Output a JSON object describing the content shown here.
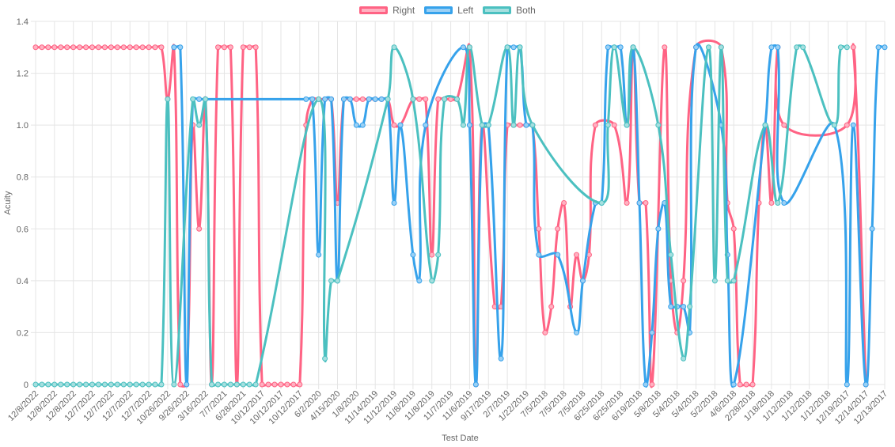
{
  "chart_data": {
    "type": "line",
    "title": "",
    "xlabel": "Test Date",
    "ylabel": "Acuity",
    "ylim": [
      0,
      1.4
    ],
    "y_ticks": [
      "0",
      "0.2",
      "0.4",
      "0.6",
      "0.8",
      "1.0",
      "1.2",
      "1.4"
    ],
    "grid": true,
    "legend_position": "top",
    "x_tick_every": 3,
    "x_tick_labels": [
      "12/8/2022",
      "12/8/2022",
      "12/8/2022",
      "12/7/2022",
      "12/7/2022",
      "12/7/2022",
      "12/7/2022",
      "10/26/2022",
      "9/26/2022",
      "3/16/2022",
      "7/7/2021",
      "6/28/2021",
      "10/12/2017",
      "10/12/2017",
      "10/12/2017",
      "6/2/2020",
      "4/15/2020",
      "1/8/2020",
      "11/14/2019",
      "11/12/2019",
      "11/8/2019",
      "11/8/2019",
      "11/7/2019",
      "11/6/2019",
      "9/17/2019",
      "2/7/2019",
      "1/22/2019",
      "7/5/2018",
      "7/5/2018",
      "7/5/2018",
      "6/25/2018",
      "6/25/2018",
      "6/19/2018",
      "5/8/2018",
      "5/4/2018",
      "5/4/2018",
      "5/2/2018",
      "4/6/2018",
      "2/28/2018",
      "1/18/2018",
      "1/12/2018",
      "1/12/2018",
      "1/12/2018",
      "12/19/2017",
      "12/14/2017",
      "12/13/2017"
    ],
    "point_count": 136,
    "series": [
      {
        "name": "Right",
        "color": "#ff6384",
        "fill": "#ffb1c1",
        "values": {
          "0": 1.3,
          "1": 1.3,
          "2": 1.3,
          "3": 1.3,
          "4": 1.3,
          "5": 1.3,
          "6": 1.3,
          "7": 1.3,
          "8": 1.3,
          "9": 1.3,
          "10": 1.3,
          "11": 1.3,
          "12": 1.3,
          "13": 1.3,
          "14": 1.3,
          "15": 1.3,
          "16": 1.3,
          "17": 1.3,
          "18": 1.3,
          "19": 1.3,
          "20": 1.3,
          "21": 1.1,
          "22": 1.3,
          "23": 0,
          "24": 0,
          "25": 1.0,
          "26": 0.6,
          "27": 1.1,
          "28": 0,
          "29": 1.3,
          "30": 1.3,
          "31": 1.3,
          "32": 0,
          "33": 1.3,
          "34": 1.3,
          "35": 1.3,
          "36": 0,
          "37": 0,
          "38": 0,
          "39": 0,
          "40": 0,
          "41": 0,
          "42": 0,
          "43": 1.0,
          "44": 1.1,
          "45": 1.1,
          "46": 1.1,
          "47": 1.1,
          "48": 0.7,
          "49": 1.1,
          "50": 1.1,
          "51": 1.1,
          "52": 1.1,
          "53": 1.1,
          "54": 1.1,
          "55": 1.1,
          "56": 1.1,
          "57": 1.0,
          "58": 1.0,
          "60": 1.1,
          "61": 1.1,
          "62": 1.1,
          "63": 0.5,
          "64": 1.1,
          "65": 1.1,
          "66": 1.1,
          "67": 1.1,
          "69": 1.3,
          "70": 0,
          "71": 1.0,
          "73": 0.3,
          "74": 0.3,
          "75": 1.0,
          "76": 1.0,
          "77": 1.0,
          "78": 1.0,
          "79": 1.0,
          "80": 0.6,
          "81": 0.2,
          "82": 0.3,
          "83": 0.6,
          "84": 0.7,
          "85": 0.3,
          "86": 0.5,
          "87": 0.4,
          "88": 0.5,
          "89": 1.0,
          "92": 1.0,
          "94": 0.7,
          "95": 1.3,
          "96": 0.7,
          "97": 0.7,
          "98": 0,
          "100": 1.3,
          "101": 0.4,
          "102": 0.2,
          "103": 0.4,
          "105": 1.3,
          "109": 1.3,
          "110": 0.7,
          "111": 0.6,
          "112": 0,
          "113": 0,
          "114": 0,
          "115": 0.7,
          "116": 1.0,
          "117": 0.7,
          "118": 1.3,
          "119": 1.0,
          "129": 1.0,
          "130": 1.3,
          "132": 0
        }
      },
      {
        "name": "Left",
        "color": "#36a2eb",
        "fill": "#9ad0f5",
        "values": {
          "22": 1.3,
          "23": 1.3,
          "24": 0,
          "25": 1.1,
          "26": 1.1,
          "27": 1.1,
          "43": 1.1,
          "44": 1.1,
          "45": 0.5,
          "46": 1.1,
          "47": 1.1,
          "48": 0.4,
          "49": 1.1,
          "50": 1.1,
          "51": 1.0,
          "52": 1.0,
          "53": 1.1,
          "54": 1.1,
          "55": 1.1,
          "56": 1.1,
          "57": 0.7,
          "58": 1.0,
          "60": 0.5,
          "61": 0.4,
          "62": 1.0,
          "68": 1.3,
          "69": 1.0,
          "70": 0,
          "71": 1.0,
          "72": 1.0,
          "74": 0.1,
          "75": 1.3,
          "76": 1.3,
          "77": 1.3,
          "78": 1.0,
          "79": 1.0,
          "80": 0.5,
          "83": 0.5,
          "86": 0.2,
          "87": 0.4,
          "89": 0.7,
          "90": 0.7,
          "91": 1.3,
          "92": 1.3,
          "93": 1.3,
          "94": 1.0,
          "95": 1.3,
          "96": 0.7,
          "97": 0,
          "98": 0.2,
          "99": 0.6,
          "100": 0.7,
          "101": 0.3,
          "102": 0.3,
          "103": 0.3,
          "104": 0.2,
          "105": 1.3,
          "109": 1.0,
          "110": 0.5,
          "111": 0,
          "116": 1.0,
          "117": 1.3,
          "118": 1.3,
          "119": 0.7,
          "127": 1.0,
          "129": 0,
          "130": 1.0,
          "132": 0,
          "133": 0.6,
          "134": 1.3,
          "135": 1.3
        }
      },
      {
        "name": "Both",
        "color": "#4bc0c0",
        "fill": "#a5dfdf",
        "values": {
          "0": 0,
          "1": 0,
          "2": 0,
          "3": 0,
          "4": 0,
          "5": 0,
          "6": 0,
          "7": 0,
          "8": 0,
          "9": 0,
          "10": 0,
          "11": 0,
          "12": 0,
          "13": 0,
          "14": 0,
          "15": 0,
          "16": 0,
          "17": 0,
          "18": 0,
          "19": 0,
          "20": 0,
          "21": 1.1,
          "22": 0,
          "25": 1.1,
          "26": 1.0,
          "27": 1.1,
          "28": 0,
          "29": 0,
          "30": 0,
          "31": 0,
          "32": 0,
          "33": 0,
          "34": 0,
          "35": 0,
          "45": 1.1,
          "46": 0.1,
          "47": 0.4,
          "48": 0.4,
          "56": 1.1,
          "57": 1.3,
          "60": 1.1,
          "63": 0.4,
          "64": 0.5,
          "65": 1.1,
          "67": 1.1,
          "68": 1.0,
          "69": 1.3,
          "71": 1.0,
          "72": 1.0,
          "75": 1.3,
          "76": 1.0,
          "77": 1.3,
          "79": 1.0,
          "90": 0.7,
          "91": 1.0,
          "92": 1.3,
          "94": 1.0,
          "95": 1.3,
          "99": 1.0,
          "101": 0.5,
          "103": 0.1,
          "104": 0.3,
          "107": 1.3,
          "108": 0.4,
          "109": 1.3,
          "110": 0.4,
          "111": 0.4,
          "116": 1.0,
          "118": 0.7,
          "121": 1.3,
          "122": 1.3,
          "127": 1.0,
          "128": 1.3,
          "129": 1.3
        }
      }
    ]
  }
}
